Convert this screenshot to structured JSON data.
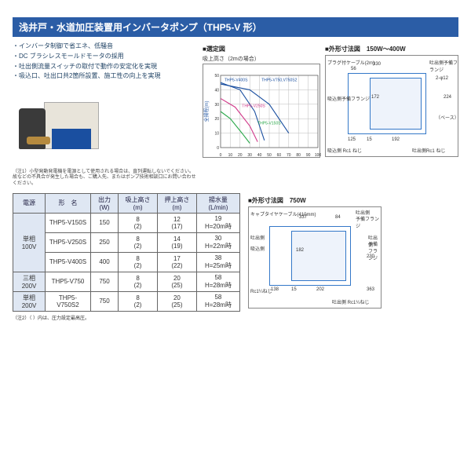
{
  "title": "浅井戸・水道加圧装置用インバータポンプ（THP5-V 形）",
  "bullets": [
    "インバータ制御で省エネ、低騒音",
    "DC ブラシレスモールドモータの採用",
    "吐出側流量スイッチの取付で動作の安定化を実現",
    "吸込口、吐出口共2箇所設置、施工性の向上を実現"
  ],
  "photo_note": "（注1）小型発動発電機を電源として使用される場合は、直列運転しないでください。故などの不具合が発生した場合も、ご購入先、またはポンプ技術相談口にお問い合わせください。",
  "selection_chart": {
    "heading": "■選定図",
    "subtitle": "吸上高さ（2mの場合）",
    "ylabel": "全揚程(m)",
    "xlabel": "",
    "xlim": [
      0,
      100
    ],
    "ylim": [
      0,
      50
    ],
    "xticks": [
      0,
      10,
      20,
      30,
      40,
      50,
      60,
      70,
      80,
      90,
      100
    ],
    "yticks": [
      0,
      10,
      20,
      30,
      40,
      50
    ],
    "grid_color": "#bbbbbb",
    "series": [
      {
        "name": "THP5-V400S",
        "color": "#1a4fa0",
        "label_x": 4,
        "label_y": 46,
        "pts": [
          [
            0,
            45
          ],
          [
            20,
            40
          ],
          [
            35,
            25
          ],
          [
            45,
            5
          ]
        ]
      },
      {
        "name": "THP5-V750,V750S2",
        "color": "#1a4fa0",
        "label_x": 42,
        "label_y": 46,
        "pts": [
          [
            0,
            44
          ],
          [
            30,
            40
          ],
          [
            50,
            30
          ],
          [
            70,
            10
          ]
        ]
      },
      {
        "name": "THP5-V250S",
        "color": "#d13a8a",
        "label_x": 22,
        "label_y": 28,
        "pts": [
          [
            0,
            34
          ],
          [
            15,
            28
          ],
          [
            30,
            15
          ],
          [
            38,
            4
          ]
        ]
      },
      {
        "name": "THP5-V150S",
        "color": "#2aa84a",
        "label_x": 38,
        "label_y": 16,
        "pts": [
          [
            0,
            25
          ],
          [
            10,
            20
          ],
          [
            22,
            10
          ],
          [
            30,
            3
          ]
        ]
      }
    ]
  },
  "dim150": {
    "heading": "■外形寸法図　150W～400W",
    "labels": {
      "cable": "プラグ付ケーブル(2m)",
      "suction_flange": "吸込側予備フランジ",
      "suction_rc1": "吸込側 Rc1 ねじ",
      "discharge_flange": "吐出側予備フランジ",
      "discharge_rc1": "吐出側Rc1 ねじ",
      "base": "（ベース）",
      "dim_330": "330",
      "dim_56": "56",
      "dim_125": "125",
      "dim_15": "15",
      "dim_172": "172",
      "dim_224": "224",
      "dim_192": "192",
      "dim_2d12": "2-φ12",
      "dim_355": "355"
    }
  },
  "dim750": {
    "heading": "■外形寸法図　750W",
    "labels": {
      "cable": "キャプタイヤケーブル(410mm)",
      "suction": "吸込側",
      "discharge": "吐出側",
      "flange": "予備フランジ",
      "rc114": "Rc1¼ねじ",
      "discharge_rc114": "吐出側 Rc1¼ねじ",
      "dim_337": "337",
      "dim_84": "84",
      "dim_138": "138",
      "dim_15": "15",
      "dim_182": "182",
      "dim_230": "230",
      "dim_202": "202",
      "dim_363": "363"
    }
  },
  "table": {
    "headers": {
      "power": "電源",
      "model": "形　名",
      "output": "出力(W)",
      "suction_h": "吸上高さ(m)",
      "push_h": "押上高さ(m)",
      "flow": "揚水量(L/min)"
    },
    "rows": [
      {
        "power": "単相100V",
        "model": "THP5-V150S",
        "output": "150",
        "suction": "8\n(2)",
        "push": "12\n(17)",
        "flow": "19\nH=20m時"
      },
      {
        "power": "",
        "model": "THP5-V250S",
        "output": "250",
        "suction": "8\n(2)",
        "push": "14\n(19)",
        "flow": "30\nH=22m時"
      },
      {
        "power": "",
        "model": "THP5-V400S",
        "output": "400",
        "suction": "8\n(2)",
        "push": "17\n(22)",
        "flow": "38\nH=25m時"
      },
      {
        "power": "三相200V",
        "model": "THP5-V750",
        "output": "750",
        "suction": "8\n(2)",
        "push": "20\n(25)",
        "flow": "58\nH=28m時"
      },
      {
        "power": "単相200V",
        "model": "THP5-V750S2",
        "output": "750",
        "suction": "8\n(2)",
        "push": "20\n(25)",
        "flow": "58\nH=28m時"
      }
    ],
    "footnote": "（注2）（ ）内は、圧力設定最高圧。"
  }
}
